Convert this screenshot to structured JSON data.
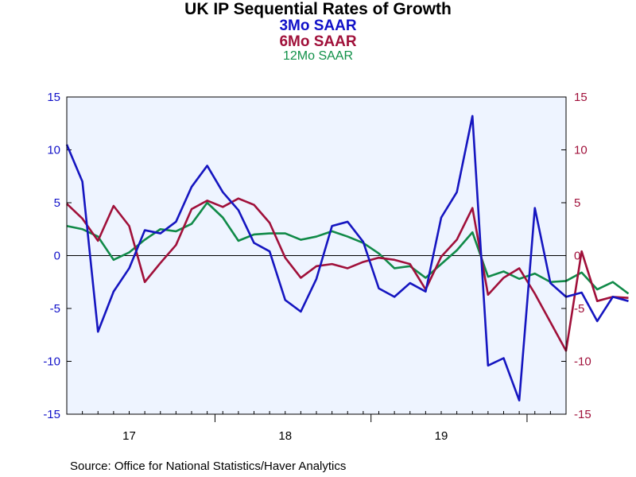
{
  "chart_data": {
    "type": "line",
    "title": "UK IP Sequential Rates of Growth",
    "subtitles": [
      "3Mo SAAR",
      "6Mo SAAR",
      "12Mo SAAR"
    ],
    "ylim": [
      -15,
      15
    ],
    "y_ticks": [
      -15,
      -10,
      -5,
      0,
      5,
      10,
      15
    ],
    "x_range": [
      0,
      32
    ],
    "x_period_labels": [
      {
        "label": "17",
        "position": 4
      },
      {
        "label": "18",
        "position": 14
      },
      {
        "label": "19",
        "position": 24
      }
    ],
    "x_period_boundaries": [
      9.5,
      19.5,
      29.5
    ],
    "grid": false,
    "zero_line": true,
    "colors": {
      "three_mo": "#1515c0",
      "six_mo": "#a0103a",
      "twelve_mo": "#108a48",
      "plot_bg": "#eef4ff",
      "axis_left": "#1010c8",
      "axis_right": "#a0103a"
    },
    "series": [
      {
        "name": "3Mo SAAR",
        "color_key": "three_mo",
        "values": [
          10.5,
          7.0,
          -7.2,
          -3.4,
          -1.2,
          2.4,
          2.1,
          3.2,
          6.5,
          8.5,
          6.0,
          4.3,
          1.2,
          0.4,
          -4.2,
          -5.3,
          -2.2,
          2.8,
          3.2,
          1.3,
          -3.1,
          -3.9,
          -2.6,
          -3.4,
          3.6,
          6.0,
          13.2,
          -10.4,
          -9.7,
          -13.7,
          4.5,
          -2.6,
          -3.9,
          -3.5,
          -6.2,
          -3.9,
          -4.3
        ]
      },
      {
        "name": "6Mo SAAR",
        "color_key": "six_mo",
        "values": [
          4.9,
          3.5,
          1.4,
          4.7,
          2.8,
          -2.5,
          -0.7,
          1.0,
          4.4,
          5.2,
          4.6,
          5.4,
          4.8,
          3.1,
          -0.2,
          -2.1,
          -1.0,
          -0.8,
          -1.2,
          -0.6,
          -0.2,
          -0.4,
          -0.8,
          -3.2,
          -0.1,
          1.5,
          4.5,
          -3.7,
          -2.1,
          -1.2,
          -3.6,
          -6.3,
          -9.0,
          0.4,
          -4.3,
          -3.9,
          -4.0
        ]
      },
      {
        "name": "12Mo SAAR",
        "color_key": "twelve_mo",
        "values": [
          2.8,
          2.5,
          1.8,
          -0.4,
          0.3,
          1.5,
          2.5,
          2.3,
          3.0,
          5.0,
          3.6,
          1.4,
          2.0,
          2.1,
          2.1,
          1.5,
          1.8,
          2.3,
          1.8,
          1.2,
          0.2,
          -1.2,
          -1.0,
          -2.1,
          -0.8,
          0.5,
          2.2,
          -2.0,
          -1.5,
          -2.2,
          -1.7,
          -2.5,
          -2.4,
          -1.6,
          -3.2,
          -2.5,
          -3.6
        ]
      }
    ]
  },
  "source": "Source:  Office for National Statistics/Haver Analytics"
}
